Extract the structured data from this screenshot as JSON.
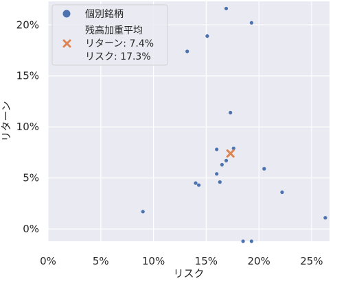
{
  "chart_data": {
    "type": "scatter",
    "title": "",
    "xlabel": "リスク",
    "ylabel": "リターン",
    "xlim": [
      0,
      26.7
    ],
    "ylim": [
      -1.2,
      22.3
    ],
    "x_ticks": [
      0,
      5,
      10,
      15,
      20,
      25
    ],
    "x_tick_labels": [
      "0%",
      "5%",
      "10%",
      "15%",
      "20%",
      "25%"
    ],
    "y_ticks": [
      0,
      5,
      10,
      15,
      20
    ],
    "y_tick_labels": [
      "0%",
      "5%",
      "10%",
      "15%",
      "20%"
    ],
    "grid": true,
    "background": "#eaeaf2",
    "legend_position": "top-left",
    "series": [
      {
        "name": "個別銘柄",
        "marker": "circle",
        "color": "#4c72b0",
        "points": [
          {
            "x": 16.9,
            "y": 21.6
          },
          {
            "x": 19.3,
            "y": 20.2
          },
          {
            "x": 15.1,
            "y": 18.9
          },
          {
            "x": 13.2,
            "y": 17.4
          },
          {
            "x": 17.3,
            "y": 11.4
          },
          {
            "x": 17.6,
            "y": 7.9
          },
          {
            "x": 16.0,
            "y": 7.8
          },
          {
            "x": 16.9,
            "y": 6.7
          },
          {
            "x": 16.5,
            "y": 6.3
          },
          {
            "x": 20.5,
            "y": 5.9
          },
          {
            "x": 16.0,
            "y": 5.4
          },
          {
            "x": 16.3,
            "y": 4.6
          },
          {
            "x": 14.0,
            "y": 4.5
          },
          {
            "x": 14.3,
            "y": 4.3
          },
          {
            "x": 22.2,
            "y": 3.6
          },
          {
            "x": 9.0,
            "y": 1.7
          },
          {
            "x": 26.3,
            "y": 1.1
          },
          {
            "x": 18.5,
            "y": -1.2
          },
          {
            "x": 19.3,
            "y": -1.2
          }
        ]
      },
      {
        "name": "残高加重平均",
        "legend_lines": [
          "残高加重平均",
          "リターン: 7.4%",
          "リスク: 17.3%"
        ],
        "marker": "x",
        "color": "#dd8452",
        "points": [
          {
            "x": 17.3,
            "y": 7.4
          }
        ]
      }
    ]
  }
}
